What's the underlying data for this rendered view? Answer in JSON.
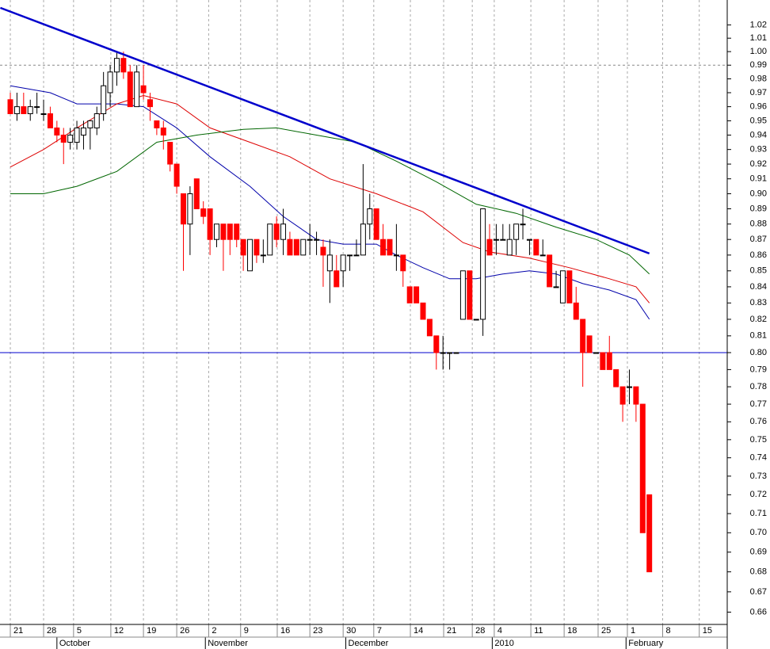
{
  "chart_data": {
    "type": "candlestick",
    "ylog": true,
    "ylim": [
      0.654,
      1.039
    ],
    "xlim": [
      -1.55,
      107.7
    ],
    "yticks": [
      0.66,
      0.67,
      0.68,
      0.69,
      {
        "value": 0.7,
        "label": "0.70"
      },
      0.71,
      0.72,
      0.73,
      0.74,
      0.75,
      0.76,
      0.77,
      0.78,
      0.79,
      {
        "value": 0.8,
        "label": "0.80"
      },
      0.81,
      0.82,
      0.83,
      0.84,
      0.85,
      0.86,
      0.87,
      0.88,
      0.89,
      {
        "value": 0.9,
        "label": "0.90"
      },
      0.91,
      0.92,
      0.93,
      0.94,
      0.95,
      0.96,
      0.97,
      0.98,
      0.99,
      {
        "value": 1.0,
        "label": "1.00"
      },
      1.01,
      1.02
    ],
    "xticks": [
      {
        "value": 0,
        "label": "21"
      },
      {
        "value": 5,
        "label": "28"
      },
      {
        "value": 9.5,
        "label": "5"
      },
      {
        "value": 15.1,
        "label": "12"
      },
      {
        "value": 20,
        "label": "19"
      },
      {
        "value": 25,
        "label": "26"
      },
      {
        "value": 29.8,
        "label": "2"
      },
      {
        "value": 34.6,
        "label": "9"
      },
      {
        "value": 40.1,
        "label": "16"
      },
      {
        "value": 45,
        "label": "23"
      },
      {
        "value": 50,
        "label": "30"
      },
      {
        "value": 54.6,
        "label": "7"
      },
      {
        "value": 60.1,
        "label": "14"
      },
      {
        "value": 65.1,
        "label": "21"
      },
      {
        "value": 69.4,
        "label": "28"
      },
      {
        "value": 72.7,
        "label": "4"
      },
      {
        "value": 78.2,
        "label": "11"
      },
      {
        "value": 83.2,
        "label": "18"
      },
      {
        "value": 88.3,
        "label": "25"
      },
      {
        "value": 92.7,
        "label": "1"
      },
      {
        "value": 98,
        "label": "8"
      },
      {
        "value": 103.5,
        "label": "15"
      }
    ],
    "months": [
      {
        "value": 7,
        "label": "October"
      },
      {
        "value": 29.3,
        "label": "November"
      },
      {
        "value": 50.4,
        "label": "December"
      },
      {
        "value": 72.4,
        "label": "2010"
      },
      {
        "value": 92.5,
        "label": "February"
      }
    ],
    "up_color": "#ffffff",
    "down_color": "#ff0000",
    "grid": true,
    "ohlc": [
      [
        0.965,
        0.97,
        0.955,
        0.955
      ],
      [
        0.955,
        0.97,
        0.95,
        0.96
      ],
      [
        0.96,
        0.97,
        0.955,
        0.955
      ],
      [
        0.955,
        0.965,
        0.95,
        0.96
      ],
      [
        0.96,
        0.97,
        0.955,
        0.96
      ],
      [
        0.955,
        0.965,
        0.95,
        0.955
      ],
      [
        0.955,
        0.96,
        0.945,
        0.945
      ],
      [
        0.945,
        0.95,
        0.935,
        0.94
      ],
      [
        0.94,
        0.945,
        0.92,
        0.935
      ],
      [
        0.935,
        0.945,
        0.93,
        0.94
      ],
      [
        0.935,
        0.95,
        0.93,
        0.945
      ],
      [
        0.94,
        0.95,
        0.93,
        0.945
      ],
      [
        0.945,
        0.95,
        0.93,
        0.95
      ],
      [
        0.945,
        0.96,
        0.94,
        0.955
      ],
      [
        0.955,
        0.985,
        0.95,
        0.975
      ],
      [
        0.97,
        0.99,
        0.96,
        0.985
      ],
      [
        0.985,
        1.0,
        0.975,
        0.995
      ],
      [
        0.995,
        1.0,
        0.98,
        0.985
      ],
      [
        0.985,
        0.99,
        0.96,
        0.96
      ],
      [
        0.96,
        0.99,
        0.96,
        0.985
      ],
      [
        0.975,
        0.99,
        0.965,
        0.97
      ],
      [
        0.965,
        0.97,
        0.95,
        0.96
      ],
      [
        0.95,
        0.95,
        0.94,
        0.945
      ],
      [
        0.945,
        0.95,
        0.93,
        0.94
      ],
      [
        0.935,
        0.935,
        0.915,
        0.92
      ],
      [
        0.92,
        0.92,
        0.9,
        0.905
      ],
      [
        0.9,
        0.9,
        0.85,
        0.88
      ],
      [
        0.88,
        0.905,
        0.86,
        0.9
      ],
      [
        0.91,
        0.91,
        0.89,
        0.89
      ],
      [
        0.89,
        0.895,
        0.88,
        0.885
      ],
      [
        0.89,
        0.89,
        0.86,
        0.87
      ],
      [
        0.87,
        0.88,
        0.865,
        0.88
      ],
      [
        0.88,
        0.88,
        0.85,
        0.87
      ],
      [
        0.88,
        0.88,
        0.86,
        0.87
      ],
      [
        0.88,
        0.88,
        0.865,
        0.87
      ],
      [
        0.87,
        0.87,
        0.85,
        0.86
      ],
      [
        0.85,
        0.87,
        0.85,
        0.87
      ],
      [
        0.87,
        0.87,
        0.855,
        0.86
      ],
      [
        0.86,
        0.87,
        0.855,
        0.86
      ],
      [
        0.86,
        0.88,
        0.86,
        0.88
      ],
      [
        0.88,
        0.885,
        0.865,
        0.87
      ],
      [
        0.87,
        0.89,
        0.86,
        0.88
      ],
      [
        0.87,
        0.875,
        0.86,
        0.86
      ],
      [
        0.87,
        0.87,
        0.86,
        0.86
      ],
      [
        0.86,
        0.87,
        0.86,
        0.87
      ],
      [
        0.87,
        0.88,
        0.86,
        0.87
      ],
      [
        0.87,
        0.875,
        0.86,
        0.87
      ],
      [
        0.865,
        0.87,
        0.84,
        0.86
      ],
      [
        0.85,
        0.87,
        0.83,
        0.86
      ],
      [
        0.85,
        0.86,
        0.84,
        0.84
      ],
      [
        0.85,
        0.86,
        0.84,
        0.86
      ],
      [
        0.86,
        0.86,
        0.85,
        0.86
      ],
      [
        0.86,
        0.87,
        0.86,
        0.86
      ],
      [
        0.86,
        0.92,
        0.86,
        0.88
      ],
      [
        0.88,
        0.9,
        0.87,
        0.89
      ],
      [
        0.89,
        0.89,
        0.87,
        0.87
      ],
      [
        0.87,
        0.88,
        0.86,
        0.86
      ],
      [
        0.87,
        0.87,
        0.86,
        0.86
      ],
      [
        0.86,
        0.88,
        0.85,
        0.86
      ],
      [
        0.86,
        0.86,
        0.84,
        0.85
      ],
      [
        0.84,
        0.84,
        0.83,
        0.83
      ],
      [
        0.84,
        0.84,
        0.83,
        0.83
      ],
      [
        0.83,
        0.83,
        0.82,
        0.82
      ],
      [
        0.82,
        0.82,
        0.81,
        0.81
      ],
      [
        0.81,
        0.81,
        0.79,
        0.8
      ],
      [
        0.8,
        0.81,
        0.79,
        0.8
      ],
      [
        0.8,
        0.8,
        0.79,
        0.8
      ],
      [
        0.8,
        0.8,
        0.8,
        0.8
      ],
      [
        0.82,
        0.85,
        0.82,
        0.85
      ],
      [
        0.85,
        0.85,
        0.82,
        0.82
      ],
      [
        0.82,
        0.82,
        0.82,
        0.82
      ],
      [
        0.82,
        0.89,
        0.81,
        0.89
      ],
      [
        0.87,
        0.88,
        0.86,
        0.86
      ],
      [
        0.87,
        0.88,
        0.86,
        0.87
      ],
      [
        0.87,
        0.88,
        0.87,
        0.87
      ],
      [
        0.86,
        0.88,
        0.86,
        0.87
      ],
      [
        0.87,
        0.88,
        0.86,
        0.88
      ],
      [
        0.88,
        0.89,
        0.87,
        0.88
      ],
      [
        0.87,
        0.87,
        0.86,
        0.87
      ],
      [
        0.87,
        0.87,
        0.86,
        0.86
      ],
      [
        0.86,
        0.87,
        0.86,
        0.86
      ],
      [
        0.86,
        0.86,
        0.84,
        0.84
      ],
      [
        0.84,
        0.85,
        0.84,
        0.84
      ],
      [
        0.83,
        0.85,
        0.83,
        0.85
      ],
      [
        0.85,
        0.85,
        0.83,
        0.83
      ],
      [
        0.83,
        0.84,
        0.82,
        0.82
      ],
      [
        0.82,
        0.82,
        0.78,
        0.8
      ],
      [
        0.81,
        0.81,
        0.8,
        0.8
      ],
      [
        0.8,
        0.8,
        0.8,
        0.8
      ],
      [
        0.8,
        0.8,
        0.79,
        0.79
      ],
      [
        0.8,
        0.81,
        0.79,
        0.79
      ],
      [
        0.79,
        0.79,
        0.78,
        0.78
      ],
      [
        0.78,
        0.78,
        0.76,
        0.77
      ],
      [
        0.78,
        0.79,
        0.77,
        0.78
      ],
      [
        0.78,
        0.78,
        0.76,
        0.77
      ],
      [
        0.77,
        0.77,
        0.7,
        0.7
      ],
      [
        0.72,
        0.72,
        0.68,
        0.68
      ]
    ],
    "series": [
      {
        "color": "#0000aa",
        "x": [
          0,
          6,
          10,
          16,
          20,
          25,
          30,
          36,
          41,
          46,
          50,
          55,
          58,
          62,
          66,
          70,
          74,
          78,
          82,
          86,
          90,
          94,
          96
        ],
        "values": [
          0.975,
          0.97,
          0.962,
          0.962,
          0.96,
          0.945,
          0.925,
          0.905,
          0.885,
          0.87,
          0.867,
          0.867,
          0.86,
          0.852,
          0.845,
          0.845,
          0.848,
          0.85,
          0.848,
          0.842,
          0.838,
          0.832,
          0.82
        ]
      },
      {
        "color": "#dd0000",
        "x": [
          0,
          5,
          10,
          16,
          20,
          25,
          30,
          36,
          42,
          48,
          55,
          62,
          68,
          72,
          78,
          84,
          90,
          94,
          96
        ],
        "values": [
          0.918,
          0.93,
          0.945,
          0.962,
          0.968,
          0.962,
          0.945,
          0.935,
          0.925,
          0.91,
          0.9,
          0.888,
          0.868,
          0.862,
          0.858,
          0.852,
          0.845,
          0.84,
          0.83
        ]
      },
      {
        "color": "#006600",
        "x": [
          0,
          5,
          10,
          16,
          22,
          28,
          35,
          40,
          46,
          52,
          58,
          64,
          70,
          76,
          82,
          88,
          93,
          96
        ],
        "values": [
          0.9,
          0.9,
          0.905,
          0.915,
          0.935,
          0.94,
          0.944,
          0.945,
          0.94,
          0.935,
          0.922,
          0.908,
          0.893,
          0.887,
          0.878,
          0.87,
          0.86,
          0.848
        ]
      }
    ],
    "trendline": {
      "color": "#0000cc",
      "x": [
        -1.5,
        96
      ],
      "values": [
        1.033,
        0.861
      ]
    },
    "hlines": [
      {
        "value": 0.99,
        "color": "#888888",
        "dashed": true
      },
      {
        "value": 0.8,
        "color": "#0000cc",
        "dashed": false
      }
    ]
  }
}
